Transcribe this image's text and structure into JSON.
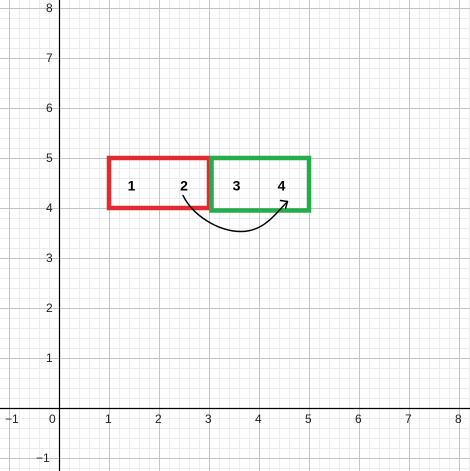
{
  "graph": {
    "x_min": -1,
    "x_max": 8,
    "y_min": -1,
    "y_max": 8,
    "minor_step": 0.2,
    "x_ticks": [
      "−1",
      "0",
      "1",
      "2",
      "3",
      "4",
      "5",
      "6",
      "7",
      "8"
    ],
    "y_ticks": [
      "−1",
      "1",
      "2",
      "3",
      "4",
      "5",
      "6",
      "7",
      "8"
    ],
    "colors": {
      "minor_grid": "#ececec",
      "major_grid": "#c4c4c4",
      "axis": "#000000"
    }
  },
  "boxes": [
    {
      "name": "red-box",
      "color": "#e52a2f",
      "x_range": [
        1,
        3
      ],
      "y_range": [
        4,
        5
      ],
      "labels": [
        {
          "text": "1",
          "x": 1.45,
          "y": 4.45
        },
        {
          "text": "2",
          "x": 2.5,
          "y": 4.45
        }
      ]
    },
    {
      "name": "green-box",
      "color": "#24ad4a",
      "x_range": [
        3.05,
        5
      ],
      "y_range": [
        3.95,
        5
      ],
      "labels": [
        {
          "text": "3",
          "x": 3.55,
          "y": 4.45
        },
        {
          "text": "4",
          "x": 4.45,
          "y": 4.45
        }
      ]
    }
  ],
  "arrow": {
    "color": "#000000",
    "from_label": "2",
    "to_label": "4"
  }
}
